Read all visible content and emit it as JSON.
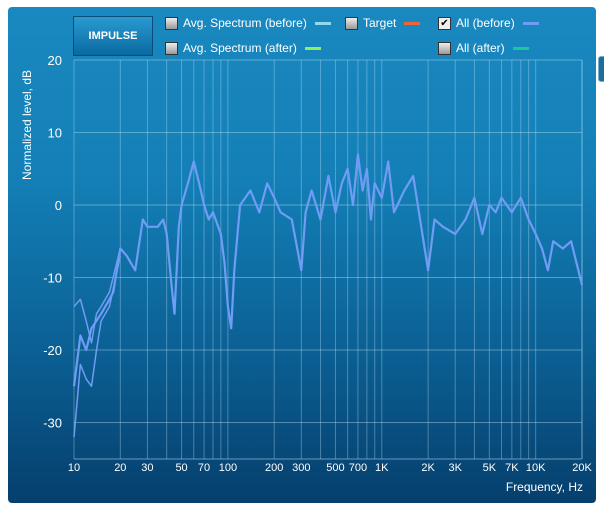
{
  "impulse_label": "IMPULSE",
  "legend": [
    {
      "label": "Avg. Spectrum (before)",
      "checked": false,
      "color": "#8fd8f0"
    },
    {
      "label": "Target",
      "checked": false,
      "color": "#e8673a"
    },
    {
      "label": "All (before)",
      "checked": true,
      "color": "#6f9cf5"
    },
    {
      "label": "Avg. Spectrum (after)",
      "checked": false,
      "color": "#8ef05a"
    },
    {
      "label": "All (after)",
      "checked": false,
      "color": "#1ec79a"
    }
  ],
  "chart_data": {
    "type": "line",
    "xlabel": "Frequency, Hz",
    "ylabel": "Normalized level, dB",
    "xscale": "log",
    "xlim": [
      10,
      20000
    ],
    "ylim": [
      -35,
      20
    ],
    "yticks": [
      20,
      10,
      0,
      -10,
      -20,
      -30
    ],
    "xticks": [
      {
        "v": 10,
        "l": "10"
      },
      {
        "v": 20,
        "l": "20"
      },
      {
        "v": 30,
        "l": "30"
      },
      {
        "v": 50,
        "l": "50"
      },
      {
        "v": 70,
        "l": "70"
      },
      {
        "v": 100,
        "l": "100"
      },
      {
        "v": 200,
        "l": "200"
      },
      {
        "v": 300,
        "l": "300"
      },
      {
        "v": 500,
        "l": "500"
      },
      {
        "v": 700,
        "l": "700"
      },
      {
        "v": 1000,
        "l": "1K"
      },
      {
        "v": 2000,
        "l": "2K"
      },
      {
        "v": 3000,
        "l": "3K"
      },
      {
        "v": 5000,
        "l": "5K"
      },
      {
        "v": 7000,
        "l": "7K"
      },
      {
        "v": 10000,
        "l": "10K"
      },
      {
        "v": 20000,
        "l": "20K"
      }
    ],
    "grid": true,
    "series": [
      {
        "name": "All (before)",
        "color": "#6f9cf5",
        "x": [
          10,
          11,
          12,
          13,
          15,
          17,
          18,
          20,
          22,
          25,
          28,
          30,
          35,
          38,
          40,
          43,
          45,
          48,
          50,
          55,
          60,
          65,
          70,
          75,
          80,
          90,
          95,
          100,
          105,
          110,
          120,
          140,
          160,
          180,
          200,
          220,
          260,
          300,
          320,
          350,
          400,
          450,
          500,
          550,
          600,
          650,
          700,
          750,
          800,
          850,
          900,
          1000,
          1100,
          1200,
          1400,
          1600,
          2000,
          2200,
          2500,
          3000,
          3500,
          4000,
          4500,
          5000,
          5500,
          6000,
          7000,
          8000,
          9000,
          10000,
          11000,
          12000,
          13000,
          15000,
          17000,
          20000
        ],
        "y": [
          -25,
          -18,
          -20,
          -17,
          -15,
          -13,
          -12,
          -6,
          -7,
          -9,
          -2,
          -3,
          -3,
          -2,
          -4,
          -11,
          -15,
          -3,
          0,
          3,
          6,
          3,
          0,
          -2,
          -1,
          -4,
          -8,
          -14,
          -17,
          -9,
          0,
          2,
          -1,
          3,
          1,
          -1,
          -2,
          -9,
          -1,
          2,
          -2,
          4,
          -1,
          3,
          5,
          0,
          7,
          2,
          5,
          -2,
          3,
          1,
          6,
          -1,
          2,
          4,
          -9,
          -2,
          -3,
          -4,
          -2,
          1,
          -4,
          0,
          -1,
          1,
          -1,
          1,
          -2,
          -4,
          -6,
          -9,
          -5,
          -6,
          -5,
          -11
        ]
      },
      {
        "name": "All (before) 2",
        "color": "#6f9cf5",
        "x": [
          10,
          11,
          12,
          13,
          14,
          15,
          17,
          20
        ],
        "y": [
          -32,
          -22,
          -24,
          -25,
          -20,
          -16,
          -14,
          -7
        ]
      },
      {
        "name": "All (before) 3",
        "color": "#6f9cf5",
        "x": [
          10,
          11,
          12,
          13,
          14,
          15,
          17,
          20
        ],
        "y": [
          -14,
          -13,
          -16,
          -19,
          -15,
          -14,
          -12,
          -6
        ]
      }
    ]
  }
}
